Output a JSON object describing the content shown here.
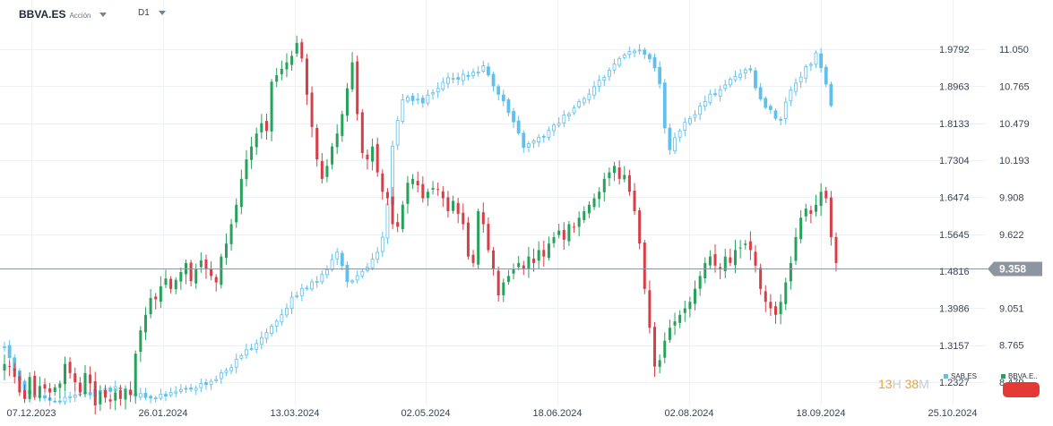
{
  "header": {
    "symbol": "BBVA.ES",
    "asset_type": "Acción",
    "timeframe": "D1"
  },
  "chart_data": {
    "type": "candlestick",
    "primary_symbol": "BBVA.ES",
    "secondary_symbol": "SAB.ES",
    "x_tick_labels": [
      "07.12.2023",
      "26.01.2024",
      "13.03.2024",
      "02.05.2024",
      "18.06.2024",
      "02.08.2024",
      "18.09.2024",
      "25.10.2024"
    ],
    "y_left_labels": [
      "1.9792",
      "1.8963",
      "1.8133",
      "1.7304",
      "1.6474",
      "1.5645",
      "1.4816",
      "1.3986",
      "1.3157",
      "1.2327"
    ],
    "y_right_labels": [
      "11.050",
      "10.765",
      "10.479",
      "10.193",
      "9.908",
      "9.622",
      "9.358",
      "9.051",
      "8.765",
      "8.479"
    ],
    "y_left_range": [
      1.1829,
      2.0538
    ],
    "y_right_range": [
      8.307,
      11.307
    ],
    "current_price": "9.358",
    "current_price_value": 9.358,
    "grid": true,
    "colors": {
      "up": "#26a25a",
      "down": "#d93d45",
      "secondary": "#5fc0ec",
      "price_line": "#8d969f",
      "price_tag": "#8d969f"
    },
    "bbva_closes": [
      8.62,
      8.6,
      8.52,
      8.4,
      8.35,
      8.52,
      8.38,
      8.45,
      8.43,
      8.4,
      8.44,
      8.47,
      8.62,
      8.55,
      8.48,
      8.4,
      8.55,
      8.47,
      8.3,
      8.4,
      8.36,
      8.33,
      8.4,
      8.35,
      8.42,
      8.38,
      8.7,
      8.88,
      9.0,
      9.13,
      9.12,
      9.22,
      9.28,
      9.2,
      9.27,
      9.33,
      9.4,
      9.26,
      9.35,
      9.42,
      9.35,
      9.3,
      9.25,
      9.45,
      9.55,
      9.7,
      9.85,
      10.05,
      10.2,
      10.3,
      10.4,
      10.48,
      10.42,
      10.8,
      10.85,
      10.9,
      10.95,
      11.0,
      11.1,
      10.98,
      10.7,
      10.45,
      10.2,
      10.05,
      10.15,
      10.3,
      10.4,
      10.55,
      10.75,
      10.95,
      10.55,
      10.25,
      10.2,
      10.3,
      10.1,
      9.95,
      9.9,
      9.7,
      9.68,
      9.85,
      10.02,
      10.05,
      10.0,
      9.9,
      9.95,
      9.98,
      9.97,
      9.9,
      9.8,
      9.88,
      9.78,
      9.7,
      9.45,
      9.4,
      9.8,
      9.7,
      9.5,
      9.35,
      9.15,
      9.25,
      9.3,
      9.35,
      9.4,
      9.35,
      9.45,
      9.4,
      9.5,
      9.45,
      9.55,
      9.6,
      9.65,
      9.58,
      9.7,
      9.68,
      9.75,
      9.8,
      9.85,
      9.9,
      9.95,
      10.05,
      10.1,
      10.15,
      10.05,
      10.08,
      9.95,
      9.8,
      9.55,
      9.2,
      8.9,
      8.6,
      8.65,
      8.8,
      8.9,
      8.95,
      9.0,
      9.05,
      9.1,
      9.2,
      9.3,
      9.4,
      9.45,
      9.38,
      9.35,
      9.45,
      9.4,
      9.5,
      9.52,
      9.55,
      9.5,
      9.38,
      9.2,
      9.1,
      9.05,
      9.0,
      9.1,
      9.25,
      9.4,
      9.6,
      9.75,
      9.82,
      9.78,
      9.85,
      9.95,
      9.9,
      9.6,
      9.4
    ]
  },
  "legend": {
    "sab_label": "SAB.ES",
    "bbva_label": "BBVA.E..",
    "sab_color": "#5fc0ec",
    "bbva_color": "#26a25a"
  },
  "timer": {
    "hours": "13",
    "hours_unit": "H",
    "minutes": "38",
    "minutes_unit": "M"
  }
}
